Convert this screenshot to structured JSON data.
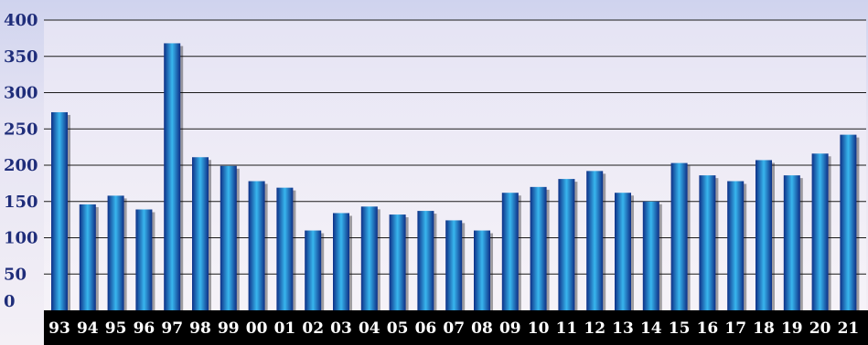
{
  "chart_data": {
    "type": "bar",
    "title": "",
    "xlabel": "",
    "ylabel": "",
    "categories": [
      "93",
      "94",
      "95",
      "96",
      "97",
      "98",
      "99",
      "00",
      "01",
      "02",
      "03",
      "04",
      "05",
      "06",
      "07",
      "08",
      "09",
      "10",
      "11",
      "12",
      "13",
      "14",
      "15",
      "16",
      "17",
      "18",
      "19",
      "20",
      "21"
    ],
    "values": [
      273,
      146,
      158,
      139,
      368,
      211,
      199,
      178,
      169,
      110,
      134,
      143,
      132,
      137,
      124,
      110,
      162,
      170,
      181,
      192,
      162,
      150,
      203,
      186,
      178,
      207,
      186,
      216,
      242
    ],
    "ylim": [
      0,
      400
    ],
    "yticks": [
      0,
      50,
      100,
      150,
      200,
      250,
      300,
      350,
      400
    ],
    "grid": true,
    "legend": "none",
    "colors": {
      "bar_edge": "#0d2f86",
      "bar_center": "#38b6ee",
      "axis_band": "#000000",
      "ytick_text": "#1f2d7a",
      "xtick_text": "#ffffff",
      "gridline": "#1a1a1a"
    }
  }
}
